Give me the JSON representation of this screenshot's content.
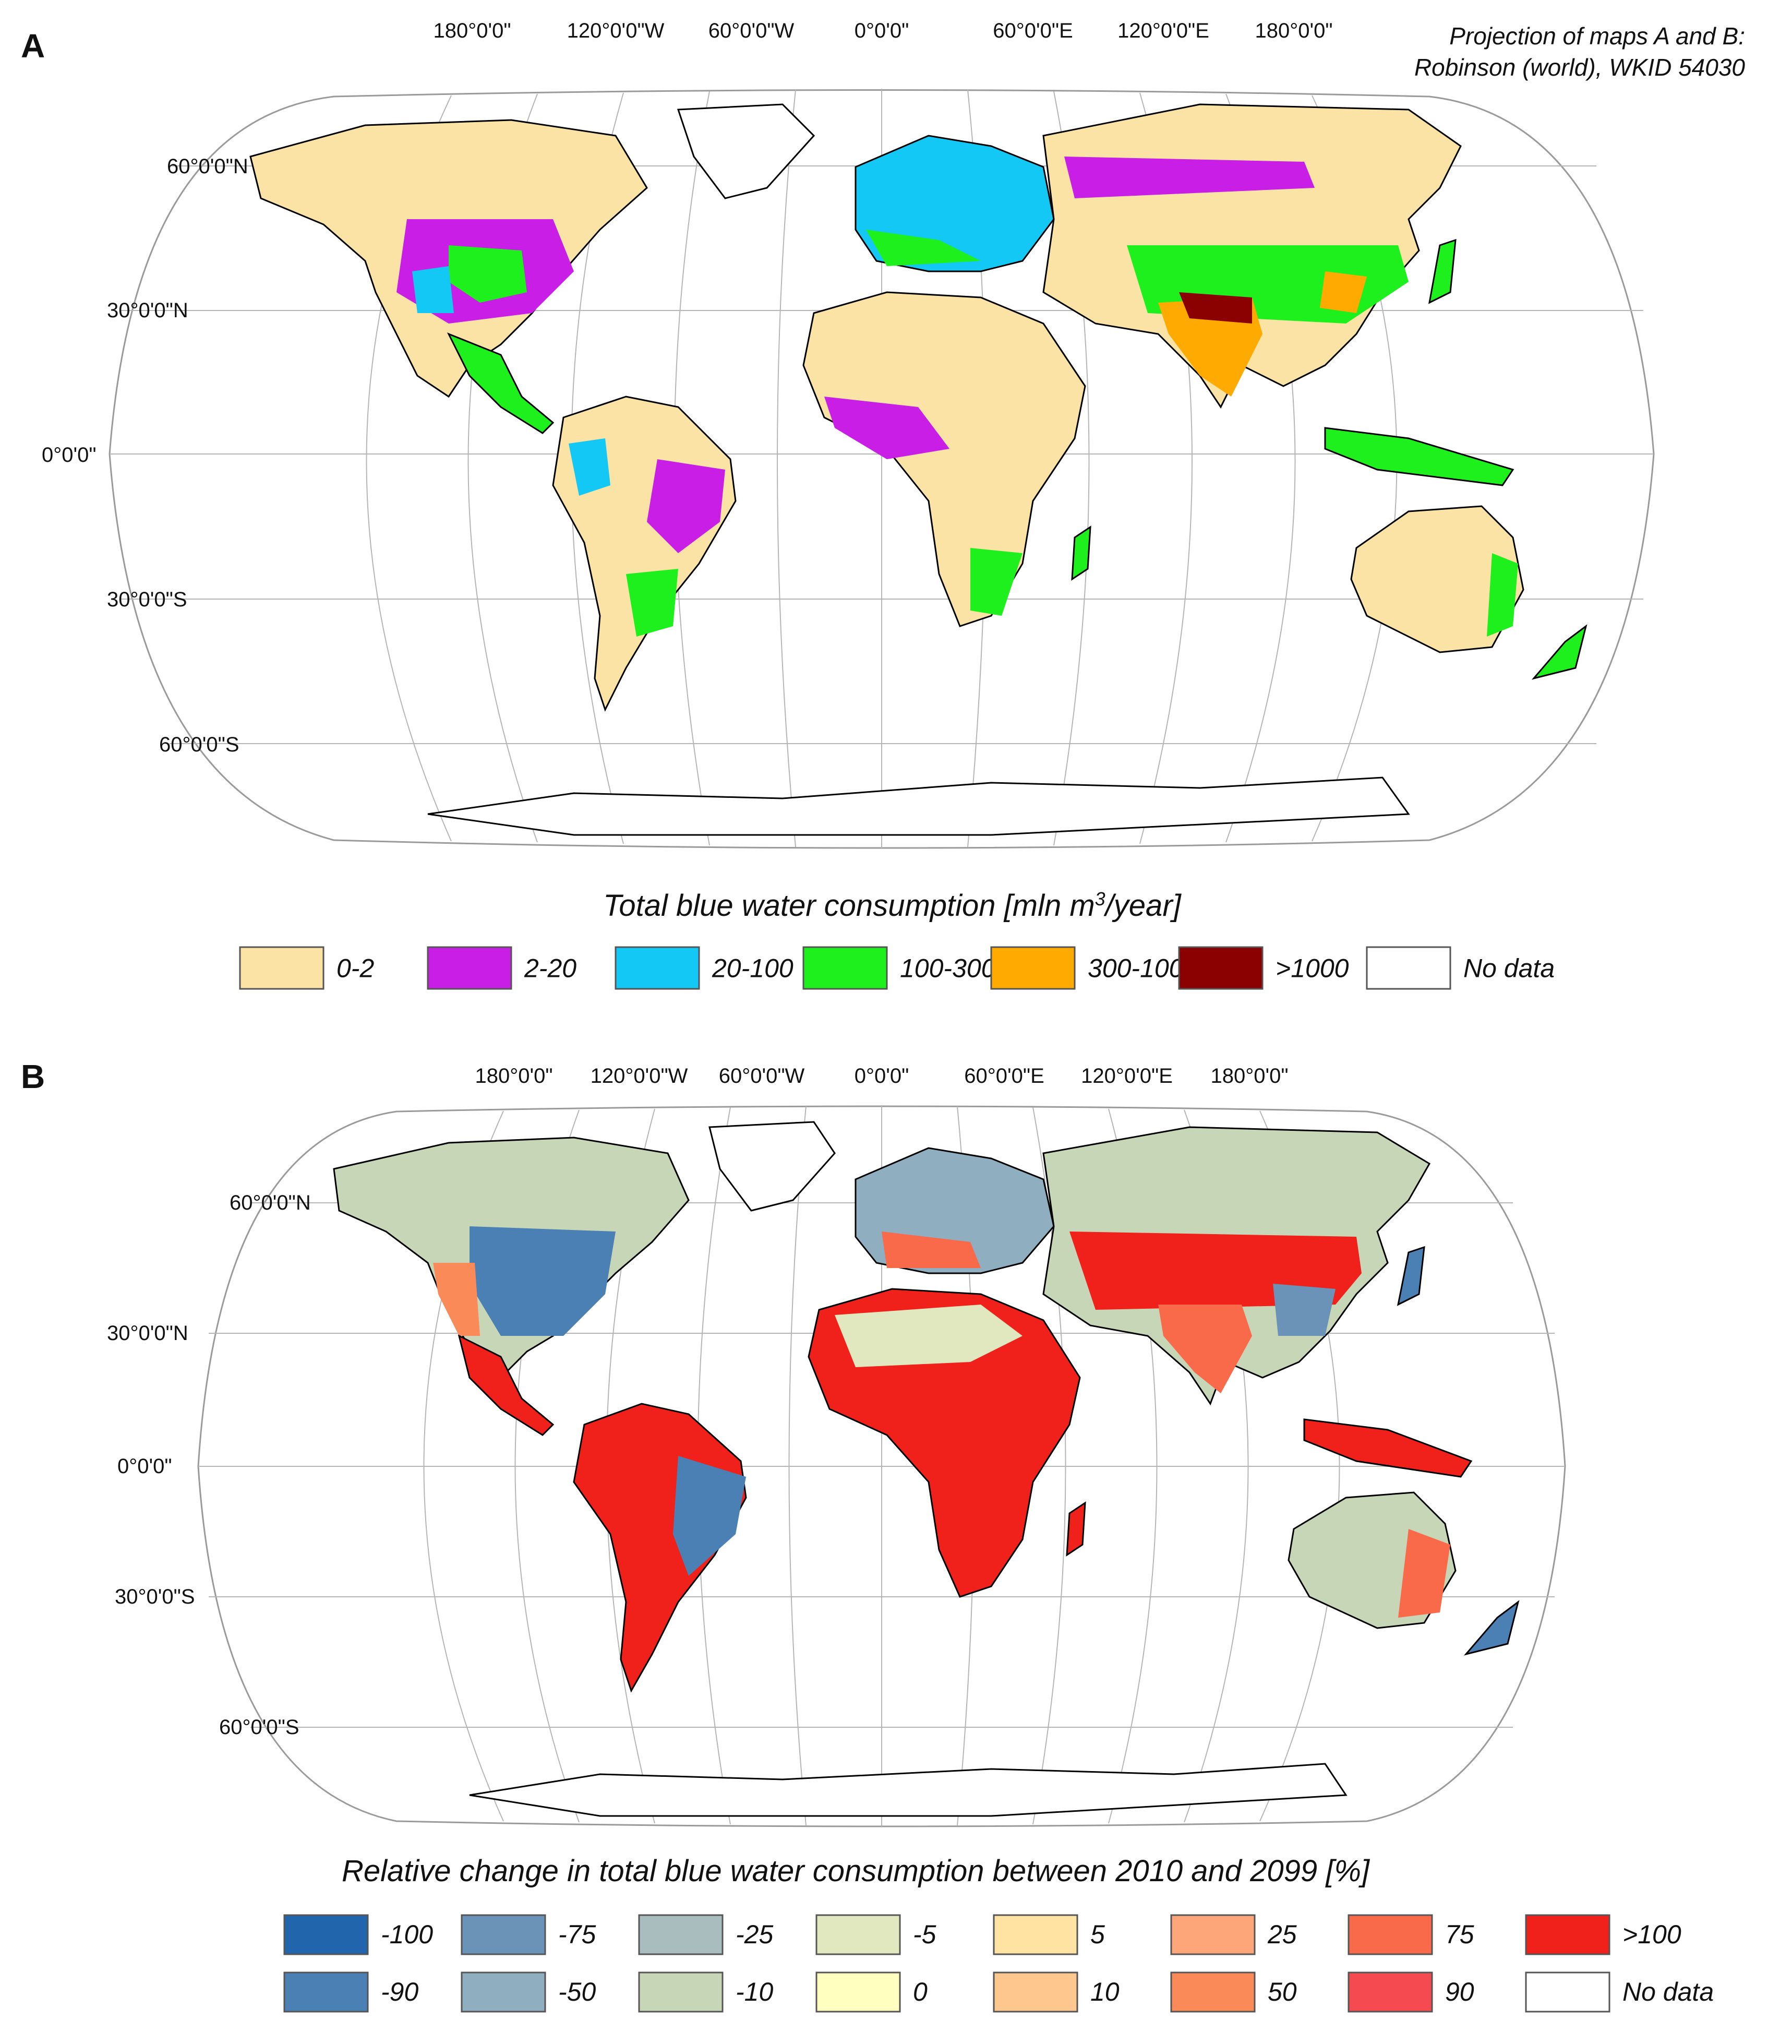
{
  "map_a": {
    "letter": "A",
    "projection_line1": "Projection of maps A and B:",
    "projection_line2": "Robinson (world), WKID 54030",
    "lon_labels": [
      "180°0'0\"",
      "120°0'0\"W",
      "60°0'0\"W",
      "0°0'0\"",
      "60°0'0\"E",
      "120°0'0\"E",
      "180°0'0\""
    ],
    "lat_labels": [
      "60°0'0\"N",
      "30°0'0\"N",
      "0°0'0\"",
      "30°0'0\"S",
      "60°0'0\"S"
    ],
    "legend_title_main": "Total blue water consumption [mln m",
    "legend_title_sup": "3",
    "legend_title_end": "/year]",
    "legend": [
      {
        "label": "0-2",
        "color": "#fbe3a6"
      },
      {
        "label": "2-20",
        "color": "#c81ee6"
      },
      {
        "label": "20-100",
        "color": "#14c8f5"
      },
      {
        "label": "100-300",
        "color": "#1ef01e"
      },
      {
        "label": "300-1000",
        "color": "#ffaa00"
      },
      {
        "label": ">1000",
        "color": "#8b0000"
      },
      {
        "label": "No data",
        "color": "#ffffff"
      }
    ]
  },
  "map_b": {
    "letter": "B",
    "lon_labels": [
      "180°0'0\"",
      "120°0'0\"W",
      "60°0'0\"W",
      "0°0'0\"",
      "60°0'0\"E",
      "120°0'0\"E",
      "180°0'0\""
    ],
    "lat_labels": [
      "60°0'0\"N",
      "30°0'0\"N",
      "0°0'0\"",
      "30°0'0\"S",
      "60°0'0\"S"
    ],
    "legend_title": "Relative change in total blue water consumption between 2010 and 2099 [%]",
    "legend_row1": [
      {
        "label": "-100",
        "color": "#2166ac"
      },
      {
        "label": "-75",
        "color": "#6b93b8"
      },
      {
        "label": "-25",
        "color": "#a9bdbf"
      },
      {
        "label": "-5",
        "color": "#e1e8bf"
      },
      {
        "label": "5",
        "color": "#fee3a2"
      },
      {
        "label": "25",
        "color": "#fca67a"
      },
      {
        "label": "75",
        "color": "#f96a4a"
      },
      {
        "label": ">100",
        "color": "#f0201a"
      }
    ],
    "legend_row2": [
      {
        "label": "-90",
        "color": "#4a80b4"
      },
      {
        "label": "-50",
        "color": "#8faec0"
      },
      {
        "label": "-10",
        "color": "#c8d6b8"
      },
      {
        "label": "0",
        "color": "#ffffc0"
      },
      {
        "label": "10",
        "color": "#fdc78e"
      },
      {
        "label": "50",
        "color": "#fa8a58"
      },
      {
        "label": "90",
        "color": "#f44a50"
      },
      {
        "label": "No data",
        "color": "#ffffff"
      }
    ]
  }
}
